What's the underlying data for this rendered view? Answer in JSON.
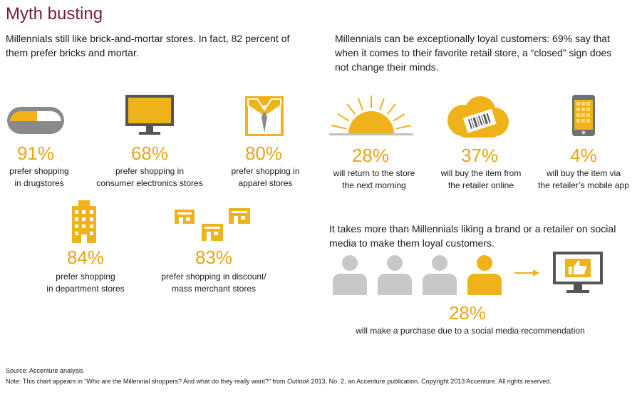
{
  "title": "Myth busting",
  "left_intro": "Millennials still like brick-and-mortar stores. In fact, 82 percent of them prefer bricks and mortar.",
  "right_intro": "Millennials can be exceptionally loyal customers: 69% say that when it comes to their favorite retail store, a “closed” sign does not change their minds.",
  "colors": {
    "accent": "#f0b21a",
    "gray": "#8a8a8a",
    "title": "#7a1e2e"
  },
  "stores": [
    {
      "icon": "pill-icon",
      "pct": "91%",
      "cap1": "prefer shopping",
      "cap2": "in drugstores"
    },
    {
      "icon": "monitor-icon",
      "pct": "68%",
      "cap1": "prefer shopping in",
      "cap2": "consumer electronics stores"
    },
    {
      "icon": "shirt-icon",
      "pct": "80%",
      "cap1": "prefer shopping in",
      "cap2": "apparel stores"
    },
    {
      "icon": "building-icon",
      "pct": "84%",
      "cap1": "prefer shopping",
      "cap2": "in department stores"
    },
    {
      "icon": "stores-icon",
      "pct": "83%",
      "cap1": "prefer shopping in discount/",
      "cap2": "mass merchant stores"
    }
  ],
  "loyalty": [
    {
      "icon": "sunrise-icon",
      "pct": "28%",
      "cap1": "will return to the store",
      "cap2": "the next morning"
    },
    {
      "icon": "price-tag-cloud-icon",
      "pct": "37%",
      "cap1": "will buy the item from",
      "cap2": "the retailer online"
    },
    {
      "icon": "smartphone-icon",
      "pct": "4%",
      "cap1": "will buy the item via",
      "cap2": "the retailer’s mobile app"
    }
  ],
  "social": {
    "text": "It takes more than Millennials liking a brand or a retailer on social media to make them loyal customers.",
    "pct": "28%",
    "caption": "will make a purchase due to a social media recommendation"
  },
  "source": "Source: Accenture analysis",
  "note_before": "Note: This chart appears in “Who are the Millennial shoppers? And what do they really want?” from ",
  "note_italic": "Outlook",
  "note_after": " 2013, No. 2, an Accenture publication. Copyright 2013 Accenture. All rights reserved."
}
